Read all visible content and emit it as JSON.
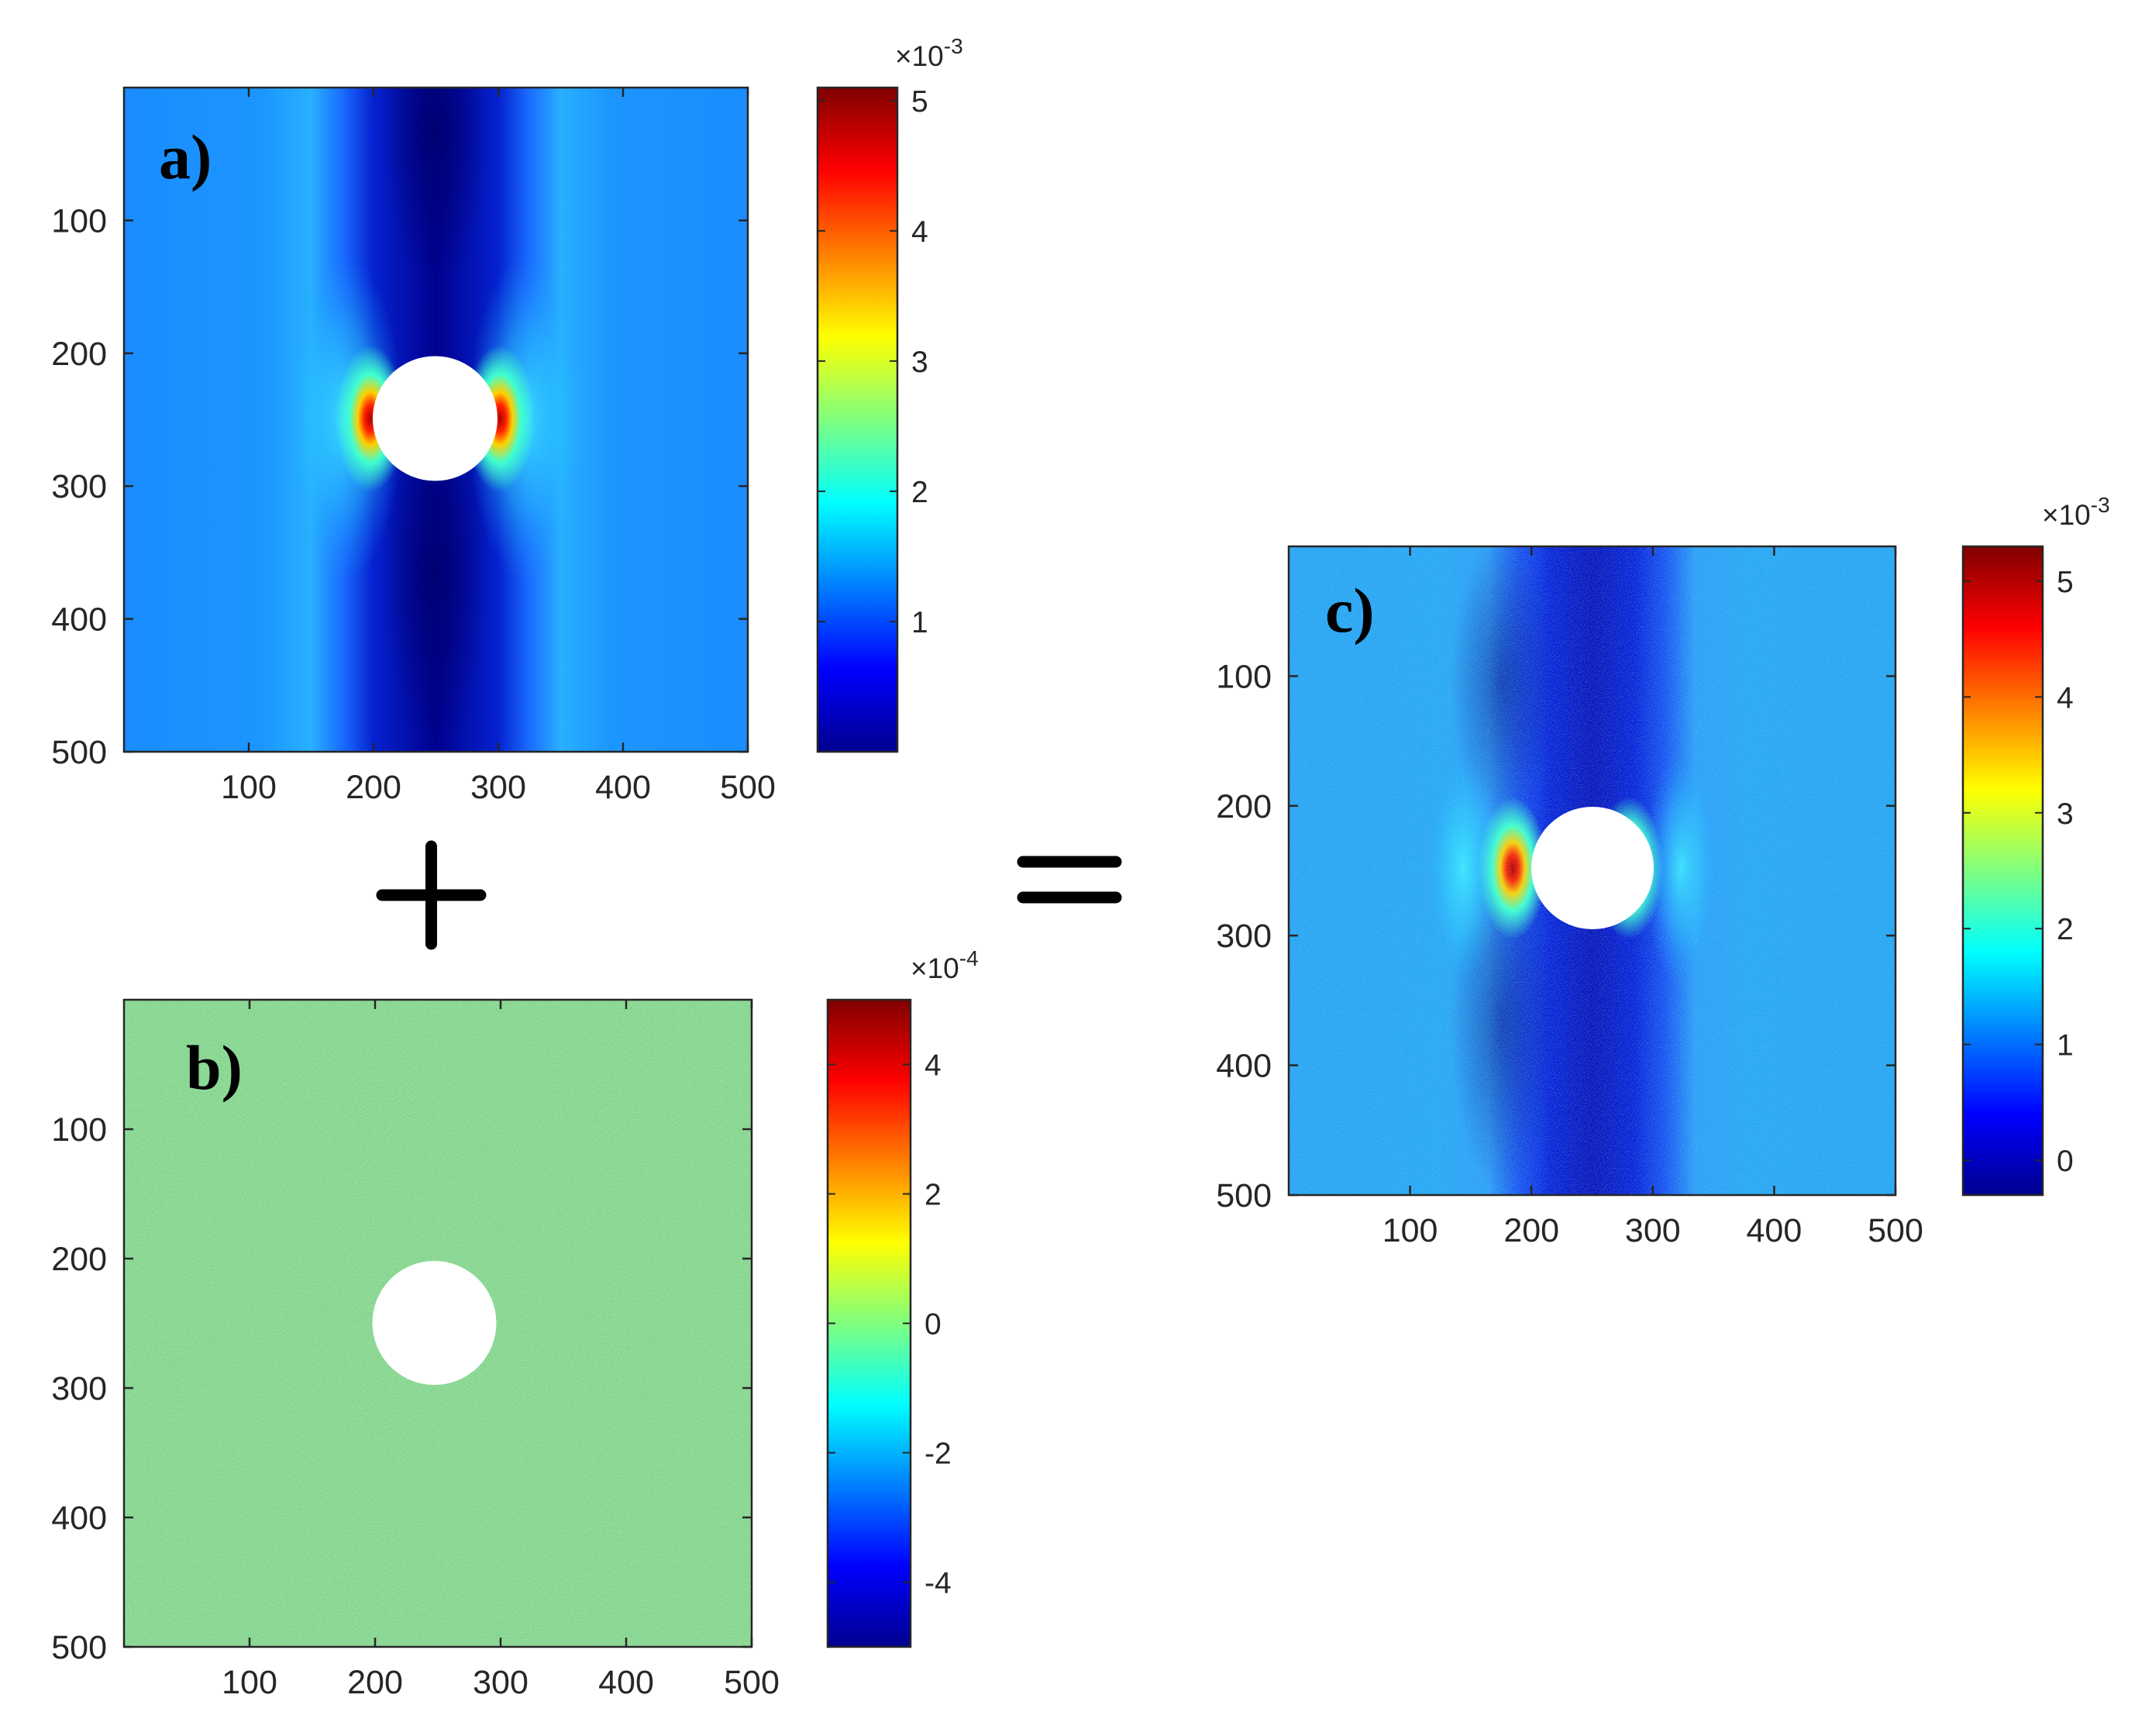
{
  "chart_data": [
    {
      "type": "heatmap",
      "panel_label": "a)",
      "x_ticks": [
        100,
        200,
        300,
        400,
        500
      ],
      "y_ticks": [
        100,
        200,
        300,
        400,
        500
      ],
      "xlim": [
        0,
        500
      ],
      "ylim": [
        0,
        500
      ],
      "y_reversed": true,
      "hole": {
        "center_x": 250,
        "center_y": 250,
        "radius": 50
      },
      "field": "strain pattern, low along the vertical band through the hole, peak at the hole's left/right edges, background about 1.5e-3",
      "colorbar": {
        "colormap": "jet",
        "range": [
          0,
          0.0051
        ],
        "ticks": [
          1,
          2,
          3,
          4,
          5
        ],
        "ticks_display": [
          "1",
          "2",
          "3",
          "4",
          "5"
        ],
        "exponent_prefix": "×10",
        "exponent": "-3"
      }
    },
    {
      "type": "heatmap",
      "panel_label": "b)",
      "x_ticks": [
        100,
        200,
        300,
        400,
        500
      ],
      "y_ticks": [
        100,
        200,
        300,
        400,
        500
      ],
      "xlim": [
        0,
        500
      ],
      "ylim": [
        0,
        500
      ],
      "y_reversed": true,
      "hole": {
        "center_x": 250,
        "center_y": 250,
        "radius": 50
      },
      "field": "random noise, mean about 0",
      "colorbar": {
        "colormap": "jet",
        "range": [
          -5,
          5
        ],
        "ticks": [
          -4,
          -2,
          0,
          2,
          4
        ],
        "ticks_display": [
          "-4",
          "-2",
          "0",
          "2",
          "4"
        ],
        "exponent_prefix": "×10",
        "exponent": "-4"
      }
    },
    {
      "type": "heatmap",
      "panel_label": "c)",
      "x_ticks": [
        100,
        200,
        300,
        400,
        500
      ],
      "y_ticks": [
        100,
        200,
        300,
        400,
        500
      ],
      "xlim": [
        0,
        500
      ],
      "ylim": [
        0,
        500
      ],
      "y_reversed": true,
      "hole": {
        "center_x": 250,
        "center_y": 250,
        "radius": 50
      },
      "field": "sum of a) and b): strain pattern with added noise",
      "colorbar": {
        "colormap": "jet",
        "range": [
          -0.3,
          5.3
        ],
        "ticks": [
          0,
          1,
          2,
          3,
          4,
          5
        ],
        "ticks_display": [
          "0",
          "1",
          "2",
          "3",
          "4",
          "5"
        ],
        "exponent_prefix": "×10",
        "exponent": "-3"
      }
    }
  ],
  "operators": {
    "plus": "+",
    "equals": "="
  }
}
